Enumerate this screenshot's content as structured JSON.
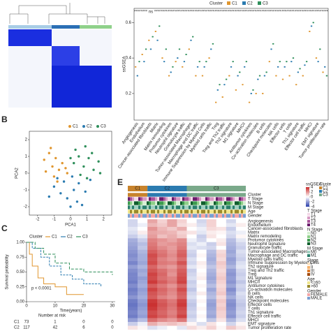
{
  "chart_data": [
    {
      "type": "box",
      "y_label": "ssGSEA",
      "legend_title": "Cluster",
      "categories": [
        "Angiogenesis",
        "Endothelium",
        "Cancer-associated fibroblasts",
        "Matrix",
        "Matrix remodeling",
        "Protumor cytokines",
        "Neutrophil signature",
        "Granulocyte traffic",
        "Tumor-associated Macrophages",
        "Macrophage and DC traffic",
        "Immune Suppression by Myeloid Cells",
        "Myeloid cells traffic",
        "Treg",
        "Treg and Th2 traffic",
        "Th2 signature",
        "M1 signature",
        "MHCII",
        "Antitumor cytokines",
        "Co-activation molecules",
        "B cells",
        "Checkpoint molecules",
        "NK cells",
        "Effector cells",
        "T cells",
        "Th1 signature",
        "Effector cell traffic",
        "MHCI",
        "EMT signature",
        "Tumor proliferation rate"
      ],
      "annotations": [
        "****",
        "****",
        "ns",
        "****",
        "****",
        "****",
        "****",
        "****",
        "****",
        "****",
        "****",
        "****",
        "****",
        "****",
        "****",
        "****",
        "****",
        "****",
        "****",
        "****",
        "****",
        "****",
        "****",
        "****",
        "****",
        "****",
        "****",
        "****",
        "****"
      ],
      "series": [
        {
          "name": "C1",
          "color": "#e0962f",
          "values": [
            0.35,
            0.42,
            0.5,
            0.55,
            0.4,
            0.3,
            0.38,
            0.35,
            0.45,
            0.3,
            0.3,
            0.4,
            0.15,
            0.18,
            0.3,
            0.22,
            0.25,
            0.15,
            0.2,
            0.2,
            0.38,
            0.3,
            0.28,
            0.3,
            0.25,
            0.3,
            0.55,
            0.4,
            0.32
          ]
        },
        {
          "name": "C2",
          "color": "#2b7bb0",
          "values": [
            0.3,
            0.38,
            0.45,
            0.5,
            0.38,
            0.32,
            0.4,
            0.38,
            0.5,
            0.35,
            0.35,
            0.45,
            0.22,
            0.25,
            0.35,
            0.3,
            0.35,
            0.2,
            0.28,
            0.3,
            0.45,
            0.35,
            0.35,
            0.38,
            0.32,
            0.36,
            0.58,
            0.38,
            0.35
          ]
        },
        {
          "name": "C3",
          "color": "#2f8f5b",
          "values": [
            0.38,
            0.45,
            0.52,
            0.58,
            0.45,
            0.35,
            0.45,
            0.42,
            0.52,
            0.38,
            0.38,
            0.48,
            0.25,
            0.28,
            0.38,
            0.32,
            0.38,
            0.22,
            0.3,
            0.32,
            0.48,
            0.38,
            0.38,
            0.4,
            0.34,
            0.38,
            0.6,
            0.45,
            0.3
          ]
        }
      ],
      "ylim": [
        0.05,
        0.68
      ],
      "yticks": [
        0.2,
        0.4,
        0.6
      ]
    },
    {
      "type": "scatter",
      "panel": "B",
      "x_label": "PCA1",
      "y_label": "PCA2",
      "series": [
        {
          "name": "C1",
          "color": "#e0962f",
          "x": [
            -1.6,
            -1.3,
            -1.1,
            -0.9,
            -0.7,
            -1.5,
            -1.0,
            -0.5,
            -0.3,
            -1.2,
            -0.8,
            -0.2
          ],
          "y": [
            0.8,
            1.2,
            0.4,
            0.9,
            0.2,
            0.1,
            -0.2,
            0.6,
            0.3,
            1.5,
            -0.5,
            0.0
          ]
        },
        {
          "name": "C2",
          "color": "#2b7bb0",
          "x": [
            -1.0,
            -0.6,
            -0.2,
            0.2,
            0.5,
            -0.8,
            0.0,
            0.4,
            0.9,
            -0.4,
            0.1,
            0.7,
            -1.3,
            1.2
          ],
          "y": [
            -0.8,
            -1.2,
            -1.5,
            -1.0,
            -0.6,
            -0.3,
            -2.0,
            -1.7,
            -1.1,
            -0.5,
            -0.2,
            -1.9,
            -1.4,
            -0.4
          ]
        },
        {
          "name": "C3",
          "color": "#2f8f5b",
          "x": [
            0.2,
            0.5,
            0.8,
            1.1,
            1.4,
            1.7,
            0.3,
            0.9,
            1.3,
            0.6,
            1.8,
            0.0,
            1.0
          ],
          "y": [
            0.6,
            1.0,
            0.4,
            0.9,
            0.2,
            0.7,
            1.4,
            1.6,
            1.2,
            -0.1,
            0.0,
            0.9,
            -0.3
          ]
        }
      ],
      "xlim": [
        -2.5,
        2.5
      ],
      "xticks": [
        -2,
        -1,
        0,
        1,
        2
      ],
      "ylim": [
        -2.5,
        2.5
      ],
      "yticks": [
        -2,
        -1,
        0,
        1,
        2
      ]
    },
    {
      "type": "line",
      "panel": "C",
      "x_label": "Time(years)",
      "y_label": "Survival probability",
      "legend_title": "Cluster",
      "annotation": "p < 0.0001",
      "series": [
        {
          "name": "C1",
          "color": "#e0962f",
          "x": [
            0,
            1,
            2,
            4,
            6,
            10,
            14,
            20
          ],
          "values": [
            1,
            0.8,
            0.6,
            0.4,
            0.3,
            0.25,
            0.12,
            0.12
          ]
        },
        {
          "name": "C2",
          "color": "#2b7bb0",
          "x": [
            0,
            2,
            5,
            8,
            12,
            16,
            20,
            26
          ],
          "values": [
            1,
            0.9,
            0.75,
            0.6,
            0.45,
            0.38,
            0.3,
            0.25
          ]
        },
        {
          "name": "C3",
          "color": "#2f8f5b",
          "x": [
            0,
            3,
            6,
            10,
            15,
            20,
            30
          ],
          "values": [
            1,
            0.9,
            0.8,
            0.65,
            0.55,
            0.5,
            0.45
          ]
        }
      ],
      "xlim": [
        0,
        31
      ],
      "xticks": [
        0,
        10,
        20,
        30
      ],
      "ylim": [
        0,
        1
      ],
      "yticks": [
        {
          "value": 0,
          "label": "0.00"
        },
        {
          "value": 0.25,
          "label": "0.25"
        },
        {
          "value": 0.5,
          "label": "0.50"
        },
        {
          "value": 0.75,
          "label": "0.75"
        },
        {
          "value": 1,
          "label": "1.00"
        }
      ],
      "risk_table": {
        "title": "Number at risk",
        "rows": [
          {
            "name": "C1",
            "values": [
              73,
              1,
              0,
              0
            ]
          },
          {
            "name": "C2",
            "values": [
              117,
              42,
              6,
              0
            ]
          }
        ]
      }
    },
    {
      "type": "heatmap",
      "panel": "E",
      "groups": [
        "C1",
        "C2",
        "C3"
      ],
      "group_sizes": [
        2,
        4,
        6
      ],
      "group_colors": [
        "#c8832c",
        "#2b7bb0",
        "#7aa98a"
      ],
      "tracks": [
        "Cluster",
        "T Stage",
        "N Stage",
        "M Stage",
        "Age",
        "Gender"
      ],
      "rows": [
        "Angiogenesis",
        "Endothelium",
        "Cancer-associated fibroblasts",
        "Matrix",
        "Matrix remodeling",
        "Protumor cytokines",
        "Neutrophil signature",
        "Granulocyte traffic",
        "Tumor-associated Macrophages",
        "Macrophage and DC traffic",
        "Myeloid cells traffic",
        "Immune Suppression by Myeloid Cells",
        "Th2 signature",
        "Treg and Th2 traffic",
        "Treg",
        "M1 signature",
        "MHCII",
        "Antitumor cytokines",
        "Co-activation molecules",
        "B cells",
        "NK cells",
        "Checkpoint molecules",
        "Effector cells",
        "T cells",
        "Th1 signature",
        "Effector cell traffic",
        "MHCI",
        "EMT signature",
        "Tumor proliferation rate"
      ],
      "values": [
        [
          -0.5,
          0,
          1,
          0.5,
          1,
          0.5,
          0,
          -0.5,
          0.5,
          0,
          -0.5,
          0
        ],
        [
          -0.5,
          -0.2,
          0.8,
          0.6,
          1,
          0.4,
          0.2,
          -0.4,
          0.5,
          0,
          -0.3,
          0.2
        ],
        [
          -0.3,
          0,
          1.2,
          0.8,
          0.6,
          0.9,
          0,
          -0.2,
          0.4,
          0.3,
          -0.6,
          0
        ],
        [
          -0.4,
          0.2,
          1,
          0.9,
          0.8,
          0.5,
          0.3,
          -0.3,
          0.2,
          0.1,
          -0.4,
          -0.2
        ],
        [
          -0.6,
          -0.3,
          1.1,
          0.7,
          0.9,
          0.6,
          0,
          -0.6,
          0.3,
          0,
          -0.5,
          0.1
        ],
        [
          -1,
          -0.6,
          1.4,
          1.2,
          1,
          1.3,
          -0.2,
          -0.5,
          0,
          0.2,
          -0.8,
          -0.3
        ],
        [
          -1.1,
          -0.8,
          1.5,
          1.1,
          1.2,
          1.4,
          -0.4,
          -0.2,
          -0.6,
          0.3,
          -0.9,
          -0.5
        ],
        [
          -1.2,
          -0.7,
          1.6,
          1.3,
          1.1,
          1.5,
          -0.3,
          -0.4,
          -0.5,
          0,
          -1,
          -0.6
        ],
        [
          -1.3,
          -0.9,
          1.8,
          1.5,
          1.2,
          1.7,
          -0.5,
          0,
          -0.8,
          0.4,
          -1.1,
          -0.4
        ],
        [
          -1.4,
          -1,
          2,
          1.6,
          1.3,
          1.8,
          -0.6,
          0.1,
          -0.9,
          0.5,
          -1,
          -0.5
        ],
        [
          -1.3,
          -1,
          1.9,
          1.4,
          1.2,
          1.6,
          -0.4,
          0,
          -1,
          0.4,
          -1.2,
          -0.6
        ],
        [
          -1.5,
          -1.1,
          2,
          1.5,
          1.4,
          1.9,
          -0.5,
          0.2,
          -0.9,
          0.6,
          -1.1,
          -0.4
        ],
        [
          -1.2,
          -0.9,
          1.7,
          1.3,
          1.1,
          1.6,
          -0.3,
          0.1,
          -0.7,
          0.5,
          -0.9,
          -0.3
        ],
        [
          -1.4,
          -1.1,
          1.9,
          1.6,
          1.3,
          1.8,
          -0.6,
          0,
          -0.9,
          0.4,
          -1.2,
          -0.5
        ],
        [
          -1.5,
          -1,
          2.1,
          1.7,
          1.2,
          1.9,
          -0.5,
          0.1,
          -1,
          0.5,
          -1.3,
          -0.6
        ],
        [
          -1.5,
          -1.2,
          2,
          1.6,
          1.4,
          2,
          -0.4,
          0.2,
          -1.1,
          0.6,
          -1.2,
          -0.5
        ],
        [
          -1.6,
          -1.1,
          2.2,
          1.8,
          1.5,
          2.1,
          -0.6,
          0,
          -1,
          0.5,
          -1.3,
          -0.7
        ],
        [
          -1.4,
          -1,
          1.8,
          1.5,
          1.2,
          1.7,
          -0.5,
          0.1,
          -0.8,
          0.4,
          -1.1,
          -0.5
        ],
        [
          -1.6,
          -1.2,
          2.1,
          1.7,
          1.4,
          2,
          -0.7,
          0,
          -1.1,
          0.5,
          -1.4,
          -0.6
        ],
        [
          -1.5,
          -1.1,
          1.9,
          1.6,
          1.3,
          1.8,
          -0.5,
          0.2,
          -0.9,
          0.6,
          -1.2,
          -0.4
        ],
        [
          -1.3,
          -1,
          1.8,
          1.4,
          1.2,
          1.7,
          -0.4,
          0,
          -0.8,
          0.4,
          -1,
          -0.5
        ],
        [
          -1.6,
          -1.2,
          2.2,
          1.8,
          1.5,
          2.1,
          -0.6,
          0.1,
          -1.1,
          0.6,
          -1.3,
          -0.6
        ],
        [
          -1.7,
          -1.3,
          2.3,
          1.9,
          1.6,
          2.2,
          -0.7,
          0,
          -1.2,
          0.5,
          -1.4,
          -0.7
        ],
        [
          -1.6,
          -1.2,
          2.2,
          1.8,
          1.5,
          2,
          -0.6,
          0.1,
          -1.1,
          0.6,
          -1.3,
          -0.6
        ],
        [
          -1.5,
          -1.1,
          2,
          1.7,
          1.4,
          1.9,
          -0.5,
          0,
          -1,
          0.5,
          -1.2,
          -0.5
        ],
        [
          -1.6,
          -1.2,
          2.1,
          1.8,
          1.5,
          2.1,
          -0.6,
          0.1,
          -1.1,
          0.5,
          -1.3,
          -0.6
        ],
        [
          -1.2,
          -0.8,
          1.6,
          1.3,
          1.1,
          1.5,
          -0.4,
          0,
          -0.7,
          0.3,
          -0.9,
          -0.4
        ],
        [
          -0.6,
          -0.2,
          0.9,
          0.6,
          0.7,
          0.5,
          0.1,
          -0.4,
          0.3,
          0,
          -0.5,
          0.1
        ],
        [
          0.3,
          0.1,
          -0.4,
          -0.2,
          0,
          -0.3,
          0.4,
          0.2,
          0.5,
          0.1,
          0.6,
          0.3
        ]
      ],
      "zlim": [
        -4,
        4
      ],
      "legends": [
        {
          "title": "ssGSEA",
          "ticks": [
            4,
            2,
            0,
            -2,
            -4
          ]
        },
        {
          "title": "Cluster",
          "items": [
            {
              "label": "C1",
              "color": "#c8832c"
            },
            {
              "label": "C2",
              "color": "#2b7bb0"
            },
            {
              "label": "C3",
              "color": "#7aa98a"
            }
          ]
        },
        {
          "title": "T Stage",
          "items": [
            {
              "label": "T1",
              "color": "#f3d9e8"
            },
            {
              "label": "T2",
              "color": "#d79bc4"
            },
            {
              "label": "T3",
              "color": "#a9549b"
            },
            {
              "label": "T4",
              "color": "#6a1b6b"
            }
          ]
        },
        {
          "title": "N Stage",
          "items": [
            {
              "label": "N0",
              "color": "#d6efd2"
            },
            {
              "label": "N1",
              "color": "#8fcf8a"
            },
            {
              "label": "N2",
              "color": "#3d9b4f"
            },
            {
              "label": "N3",
              "color": "#0f5d2c"
            }
          ]
        },
        {
          "title": "M Stage",
          "items": [
            {
              "label": "M0",
              "color": "#9fd0c0"
            },
            {
              "label": "M1",
              "color": "#2a7f6c"
            }
          ]
        },
        {
          "title": "Stage",
          "items": [
            {
              "label": "I",
              "color": "#fbe3c4"
            },
            {
              "label": "II",
              "color": "#f5b26b"
            },
            {
              "label": "III",
              "color": "#e07b28"
            },
            {
              "label": "IV",
              "color": "#a14a0c"
            }
          ]
        },
        {
          "title": "Age",
          "items": [
            {
              "label": "<=60",
              "color": "#f0e68c"
            },
            {
              "label": ">60",
              "color": "#9a8a2a"
            }
          ]
        },
        {
          "title": "Gender",
          "items": [
            {
              "label": "FEMALE",
              "color": "#f4a6a6"
            },
            {
              "label": "MALE",
              "color": "#7a9fd1"
            }
          ]
        }
      ]
    }
  ]
}
